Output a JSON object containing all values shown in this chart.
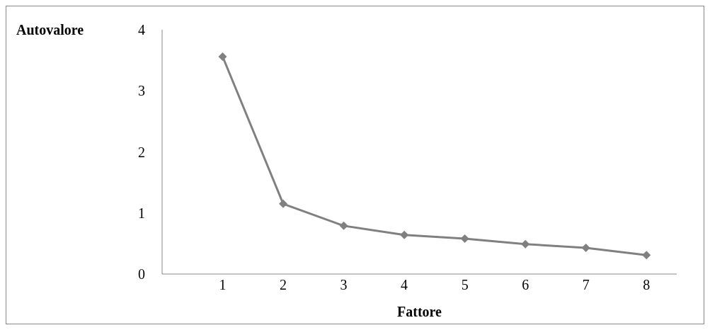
{
  "chart_data": {
    "type": "line",
    "ylabel": "Autovalore",
    "xlabel": "Fattore",
    "x": [
      1,
      2,
      3,
      4,
      5,
      6,
      7,
      8
    ],
    "series": [
      {
        "color": "#808080",
        "values": [
          3.56,
          1.15,
          0.79,
          0.64,
          0.58,
          0.49,
          0.43,
          0.31
        ]
      }
    ],
    "xlim": [
      0,
      8.5
    ],
    "xticks": [
      1,
      2,
      3,
      4,
      5,
      6,
      7,
      8
    ],
    "ylim": [
      0,
      4
    ],
    "yticks": [
      0,
      1,
      2,
      3,
      4
    ],
    "grid": false,
    "legend": false,
    "marker": "diamond",
    "line_style": "solid"
  }
}
